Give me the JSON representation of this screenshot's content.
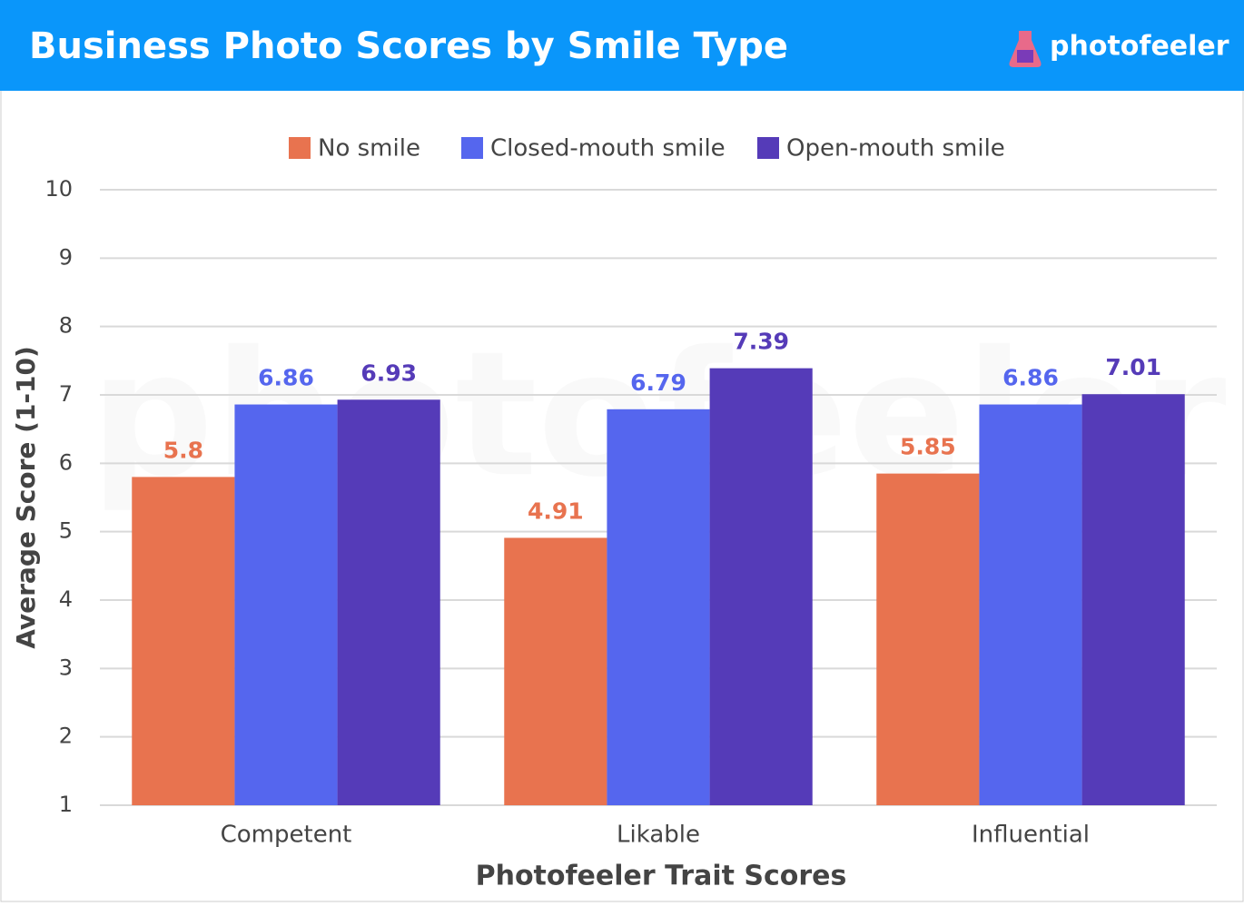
{
  "chart_data": {
    "type": "bar",
    "title": "Business Photo Scores by Smile Type",
    "brand": "photofeeler",
    "x_label": "Photofeeler Trait Scores",
    "y_label": "Average Score (1-10)",
    "categories": [
      "Competent",
      "Likable",
      "Influential"
    ],
    "series": [
      {
        "name": "No smile",
        "color": "#e8734f",
        "values": [
          5.8,
          4.91,
          5.85
        ]
      },
      {
        "name": "Closed-mouth smile",
        "color": "#5566ee",
        "values": [
          6.86,
          6.79,
          6.86
        ]
      },
      {
        "name": "Open-mouth smile",
        "color": "#553bb8",
        "values": [
          6.93,
          7.39,
          7.01
        ]
      }
    ],
    "ylim": [
      1,
      10
    ],
    "yticks": [
      1,
      2,
      3,
      4,
      5,
      6,
      7,
      8,
      9,
      10
    ],
    "grid": true,
    "legend": "top"
  }
}
